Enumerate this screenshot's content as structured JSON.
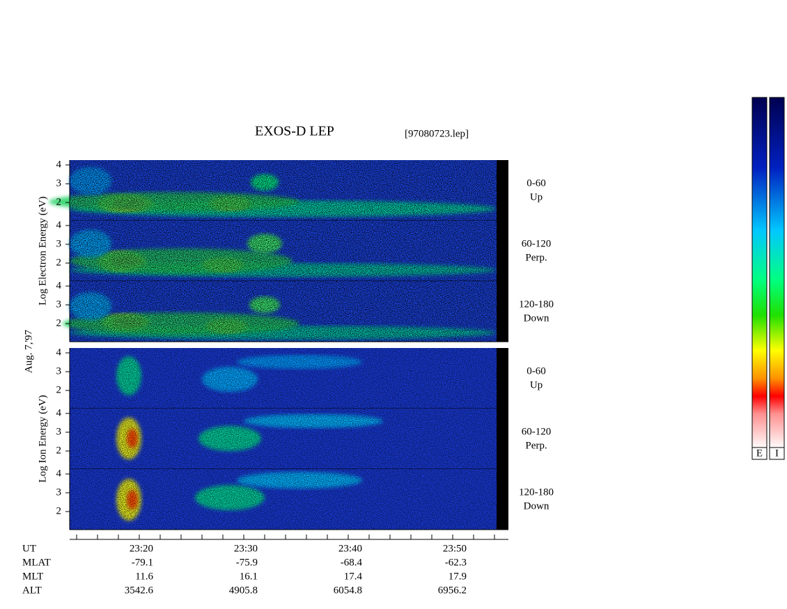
{
  "header": {
    "title": "EXOS-D LEP",
    "file": "[97080723.lep]"
  },
  "date": "Aug. 7,'97",
  "groups": [
    {
      "label": "Log Electron Energy (eV)",
      "panels": [
        {
          "yticks": [
            4,
            3,
            2
          ],
          "labels": [
            "0-60",
            "Up"
          ]
        },
        {
          "yticks": [
            4,
            3,
            2
          ],
          "labels": [
            "60-120",
            "Perp."
          ]
        },
        {
          "yticks": [
            4,
            3,
            2
          ],
          "labels": [
            "120-180",
            "Down"
          ]
        }
      ]
    },
    {
      "label": "Log Ion Energy (eV)",
      "panels": [
        {
          "yticks": [
            4,
            3,
            2
          ],
          "labels": [
            "0-60",
            "Up"
          ]
        },
        {
          "yticks": [
            4,
            3,
            2
          ],
          "labels": [
            "60-120",
            "Perp."
          ]
        },
        {
          "yticks": [
            4,
            3,
            2
          ],
          "labels": [
            "120-180",
            "Down"
          ]
        }
      ]
    }
  ],
  "time_axis": {
    "rows": [
      {
        "label": "UT",
        "values": [
          "23:20",
          "23:30",
          "23:40",
          "23:50"
        ]
      },
      {
        "label": "MLAT",
        "values": [
          "-79.1",
          "-75.9",
          "-68.4",
          "-62.3"
        ]
      },
      {
        "label": "MLT",
        "values": [
          "11.6",
          "16.1",
          "17.4",
          "17.9"
        ]
      },
      {
        "label": "ALT",
        "values": [
          "3542.6",
          "4905.8",
          "6054.8",
          "6956.2"
        ]
      }
    ]
  },
  "colorbars": [
    "E",
    "I"
  ]
}
